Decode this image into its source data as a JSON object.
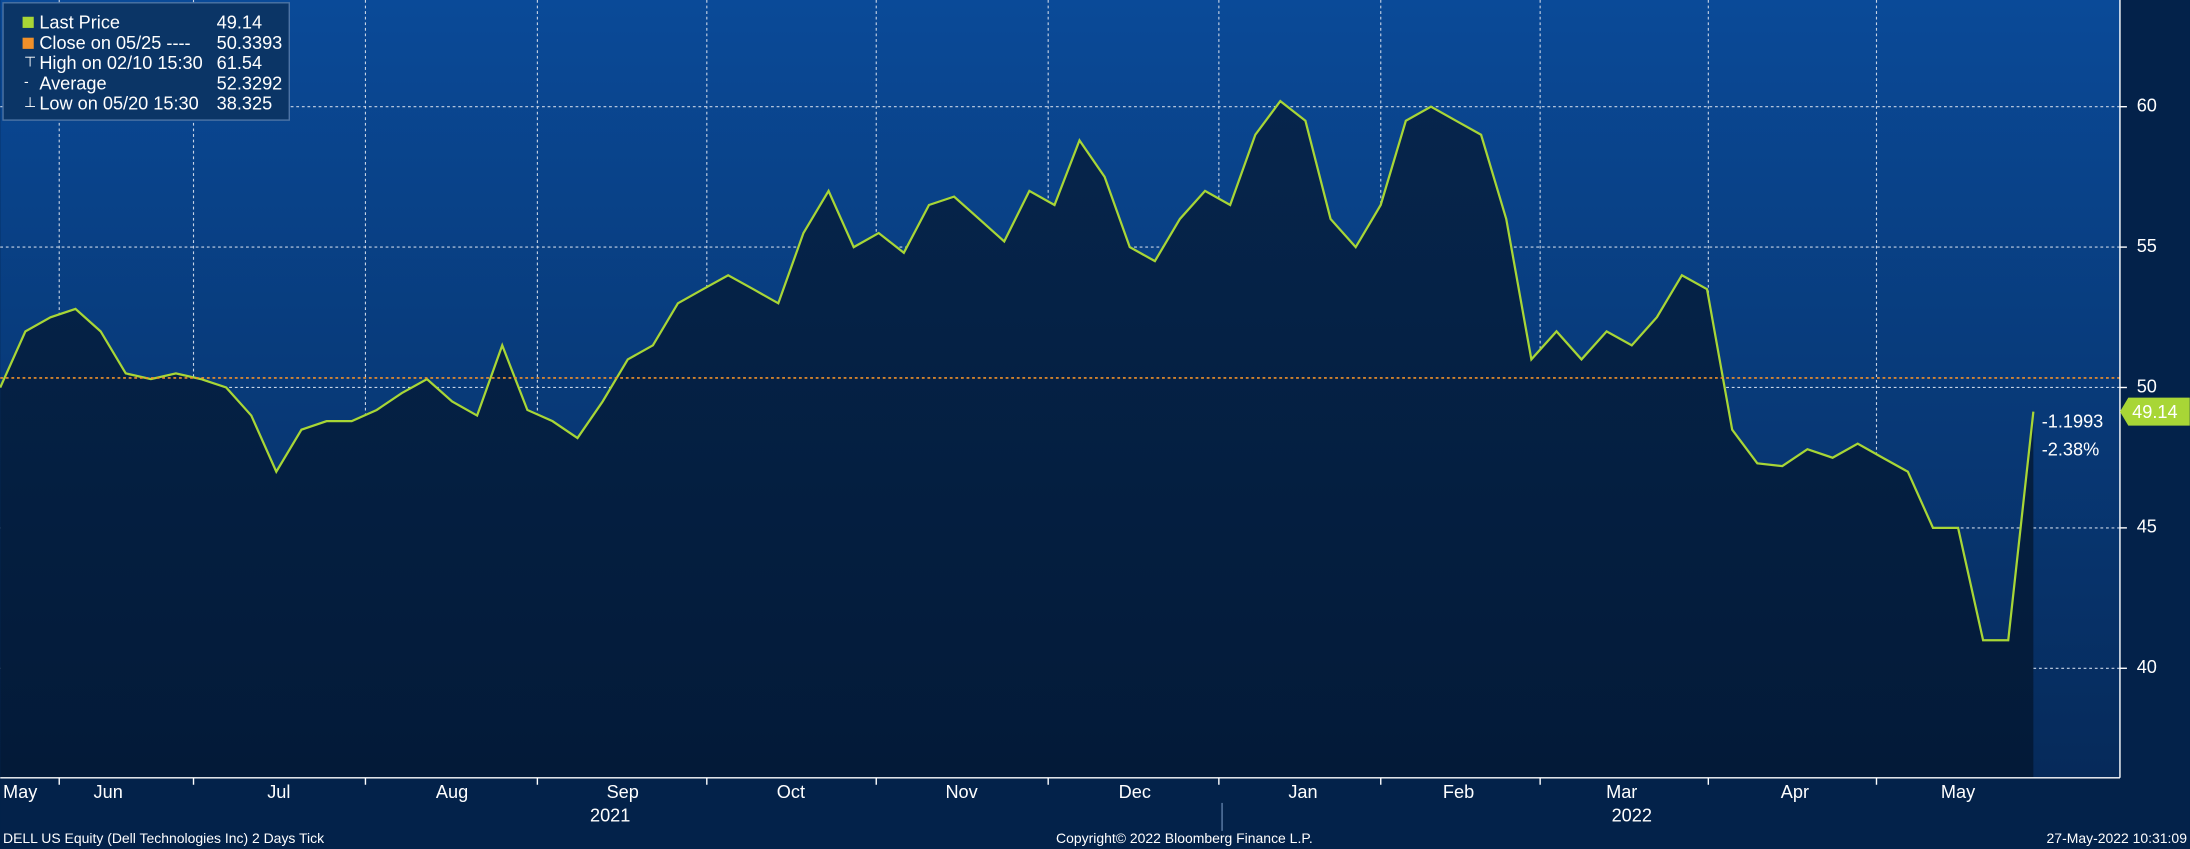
{
  "chart_data": {
    "type": "line",
    "series": [
      {
        "name": "Last Price",
        "color": "#a8d636",
        "values": [
          50,
          52,
          52.5,
          52.8,
          52,
          50.5,
          50.3,
          50.5,
          50.3,
          50,
          49,
          47,
          48.5,
          48.8,
          48.8,
          49.2,
          49.8,
          50.3,
          49.5,
          49,
          51.5,
          49.2,
          48.8,
          48.2,
          49.5,
          51,
          51.5,
          53,
          53.5,
          54,
          53.5,
          53,
          55.5,
          57,
          55,
          55.5,
          54.8,
          56.5,
          56.8,
          56,
          55.2,
          57,
          56.5,
          58.8,
          57.5,
          55,
          54.5,
          56,
          57,
          56.5,
          59,
          60.2,
          59.5,
          56,
          55,
          56.5,
          59.5,
          60,
          59.5,
          59,
          56,
          51,
          52,
          51,
          52,
          51.5,
          52.5,
          54,
          53.5,
          48.5,
          47.3,
          47.2,
          47.8,
          47.5,
          48,
          47.5,
          47,
          45,
          45,
          41,
          41,
          49.14
        ]
      }
    ],
    "close": {
      "value": 50.3393,
      "color": "#f0902a"
    },
    "ylim": [
      36.1,
      63.8
    ],
    "yticks": [
      40,
      45,
      50,
      55,
      60
    ],
    "grid": true,
    "xticks": [
      {
        "value": 0.4,
        "label": "May"
      },
      {
        "value": 4.3,
        "label": "Jun"
      },
      {
        "value": 11.1,
        "label": "Jul"
      },
      {
        "value": 18.0,
        "label": "Aug"
      },
      {
        "value": 24.8,
        "label": "Sep"
      },
      {
        "value": 31.5,
        "label": "Oct"
      },
      {
        "value": 38.3,
        "label": "Nov"
      },
      {
        "value": 45.2,
        "label": "Dec"
      },
      {
        "value": 51.9,
        "label": "Jan"
      },
      {
        "value": 58.1,
        "label": "Feb"
      },
      {
        "value": 64.6,
        "label": "Mar"
      },
      {
        "value": 71.5,
        "label": "Apr"
      },
      {
        "value": 78.0,
        "label": "May"
      }
    ],
    "year_labels": [
      {
        "value": 24.3,
        "label": "2021"
      },
      {
        "value": 65.0,
        "label": "2022"
      }
    ],
    "legend": [
      {
        "label": "Last Price",
        "value": 49.14
      },
      {
        "label": "Close on 05/25 ----",
        "value": 50.3393
      },
      {
        "label": "High on 02/10 15:30",
        "value": 61.54
      },
      {
        "label": "Average",
        "value": 52.3292
      },
      {
        "label": "Low on 05/20 15:30",
        "value": 38.325
      }
    ],
    "last_price": 49.14,
    "change": -1.1993,
    "change_percent": "-2.38%",
    "footer": {
      "left": "DELL US Equity (Dell Technologies Inc) 2 Days  Tick",
      "center": "Copyright© 2022 Bloomberg Finance L.P.",
      "right": "27-May-2022 10:31:09"
    }
  }
}
